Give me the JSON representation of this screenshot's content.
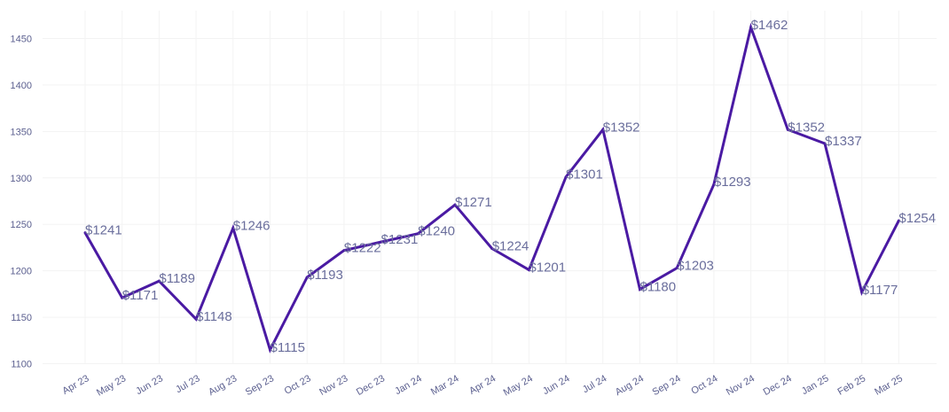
{
  "chart_data": {
    "type": "line",
    "title": "",
    "xlabel": "",
    "ylabel": "",
    "categories": [
      "Apr 23",
      "May 23",
      "Jun 23",
      "Jul 23",
      "Aug 23",
      "Sep 23",
      "Oct 23",
      "Nov 23",
      "Dec 23",
      "Jan 24",
      "Mar 24",
      "Apr 24",
      "May 24",
      "Jun 24",
      "Jul 24",
      "Aug 24",
      "Sep 24",
      "Oct 24",
      "Nov 24",
      "Dec 24",
      "Jan 25",
      "Feb 25",
      "Mar 25"
    ],
    "series": [
      {
        "values": [
          1241,
          1171,
          1189,
          1148,
          1246,
          1115,
          1193,
          1222,
          1231,
          1240,
          1271,
          1224,
          1201,
          1301,
          1352,
          1180,
          1203,
          1293,
          1462,
          1352,
          1337,
          1177,
          1254
        ],
        "labels": [
          "$1241",
          "$1171",
          "$1189",
          "$1148",
          "$1246",
          "$1115",
          "$1193",
          "$1222",
          "$1231",
          "$1240",
          "$1271",
          "$1224",
          "$1201",
          "$1301",
          "$1352",
          "$1180",
          "$1203",
          "$1293",
          "$1462",
          "$1352",
          "$1337",
          "$1177",
          "$1254"
        ]
      }
    ],
    "yticks": [
      "1100",
      "1150",
      "1200",
      "1250",
      "1300",
      "1350",
      "1400",
      "1450"
    ],
    "ylim": [
      1100,
      1476
    ],
    "grid": true,
    "legend": "none",
    "colors": {
      "line": "#4a1aa3",
      "labels": "#6a6e9c",
      "ticks": "#5b5f8f",
      "grid": "#f3f3f3"
    }
  }
}
